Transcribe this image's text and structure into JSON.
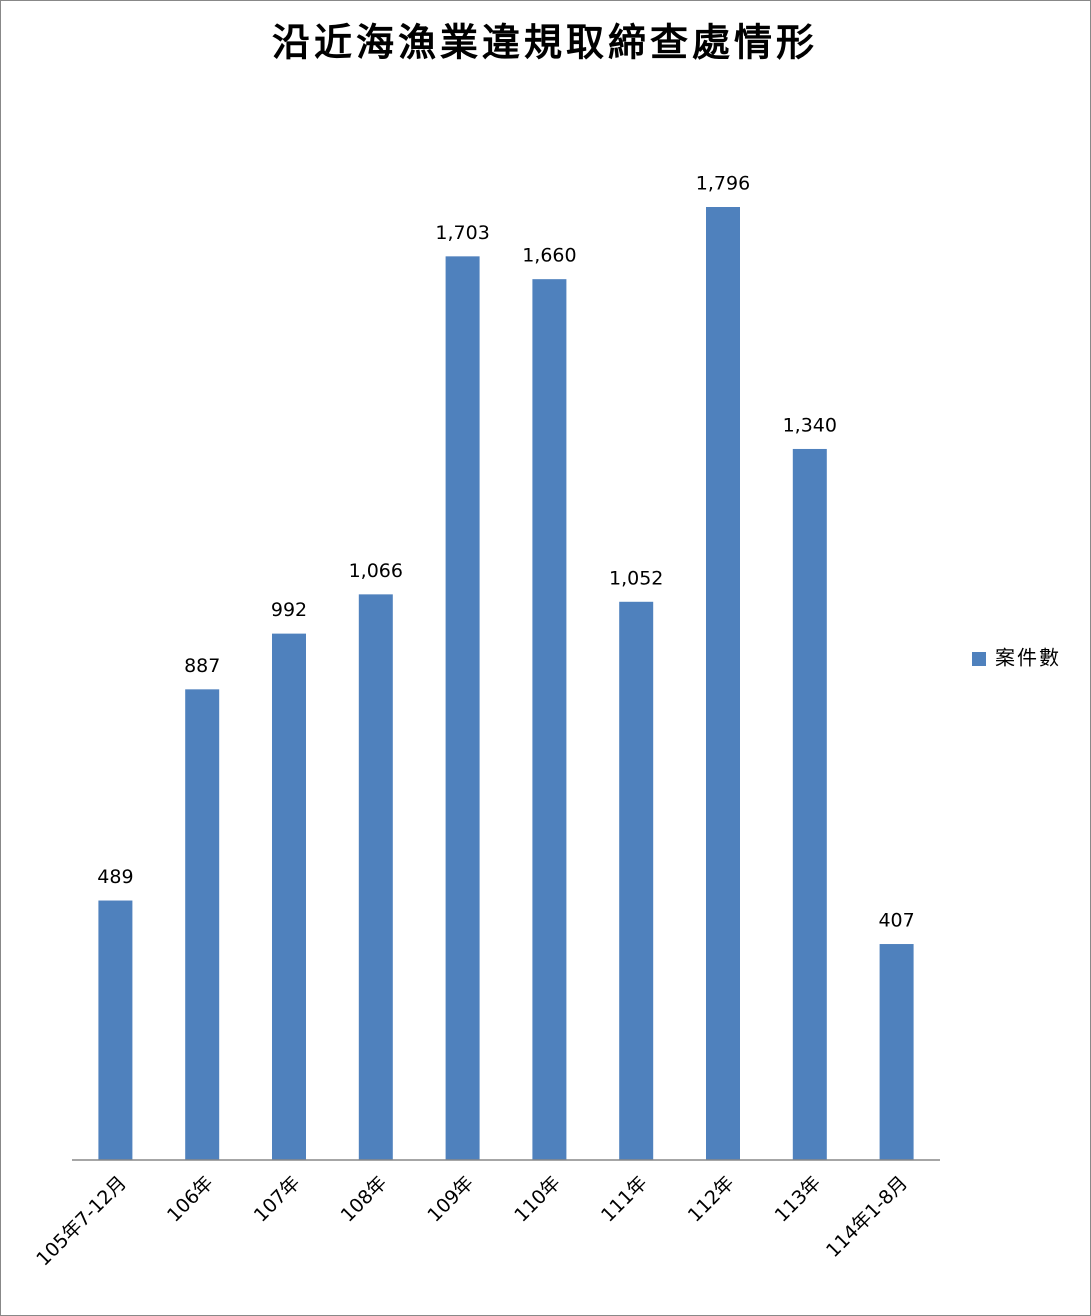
{
  "chart_data": {
    "type": "bar",
    "title": "沿近海漁業違規取締查處情形",
    "categories": [
      "105年7-12月",
      "106年",
      "107年",
      "108年",
      "109年",
      "110年",
      "111年",
      "112年",
      "113年",
      "114年1-8月"
    ],
    "series": [
      {
        "name": "案件數",
        "color": "#4f81bd",
        "values": [
          489,
          887,
          992,
          1066,
          1703,
          1660,
          1052,
          1796,
          1340,
          407
        ],
        "value_labels": [
          "489",
          "887",
          "992",
          "1,066",
          "1,703",
          "1,660",
          "1,052",
          "1,796",
          "1,340",
          "407"
        ]
      }
    ],
    "legend": "right"
  }
}
